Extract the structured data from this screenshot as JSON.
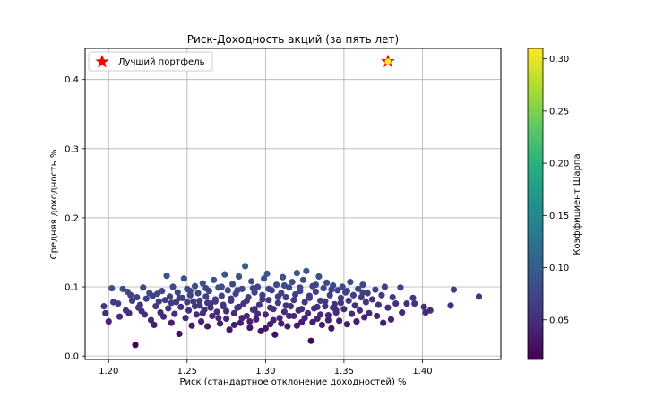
{
  "chart_data": {
    "type": "scatter",
    "title": "Риск-Доходность акций (за пять лет)",
    "xlabel": "Риск (стандартное отклонение доходностей) %",
    "ylabel": "Средняя доходность %",
    "xlim": [
      1.185,
      1.45
    ],
    "ylim": [
      -0.005,
      0.445
    ],
    "xticks": [
      1.2,
      1.25,
      1.3,
      1.35,
      1.4
    ],
    "xtick_labels": [
      "1.20",
      "1.25",
      "1.30",
      "1.35",
      "1.40"
    ],
    "yticks": [
      0.0,
      0.1,
      0.2,
      0.3,
      0.4
    ],
    "ytick_labels": [
      "0.0",
      "0.1",
      "0.2",
      "0.3",
      "0.4"
    ],
    "grid": true,
    "legend": {
      "placement": "top-left",
      "entries": [
        {
          "label": "Лучший портфель",
          "marker": "star",
          "color": "#ff0000"
        }
      ]
    },
    "colorbar": {
      "label": "Коэффициент Шарпа",
      "range": [
        0.012,
        0.31
      ],
      "ticks": [
        0.05,
        0.1,
        0.15,
        0.2,
        0.25,
        0.3
      ],
      "tick_labels": [
        "0.05",
        "0.10",
        "0.15",
        "0.20",
        "0.25",
        "0.30"
      ],
      "colormap": "viridis"
    },
    "best_portfolio": {
      "x": 1.378,
      "y": 0.426,
      "marker_color": "#ff0000"
    },
    "points": [
      [
        1.197,
        0.072
      ],
      [
        1.198,
        0.062
      ],
      [
        1.2,
        0.05
      ],
      [
        1.202,
        0.098
      ],
      [
        1.203,
        0.078
      ],
      [
        1.206,
        0.076
      ],
      [
        1.207,
        0.057
      ],
      [
        1.209,
        0.097
      ],
      [
        1.211,
        0.066
      ],
      [
        1.212,
        0.093
      ],
      [
        1.213,
        0.062
      ],
      [
        1.214,
        0.088
      ],
      [
        1.215,
        0.08
      ],
      [
        1.217,
        0.016
      ],
      [
        1.218,
        0.085
      ],
      [
        1.219,
        0.07
      ],
      [
        1.22,
        0.074
      ],
      [
        1.221,
        0.065
      ],
      [
        1.222,
        0.099
      ],
      [
        1.223,
        0.06
      ],
      [
        1.224,
        0.083
      ],
      [
        1.226,
        0.091
      ],
      [
        1.227,
        0.052
      ],
      [
        1.228,
        0.087
      ],
      [
        1.229,
        0.045
      ],
      [
        1.23,
        0.072
      ],
      [
        1.231,
        0.09
      ],
      [
        1.232,
        0.079
      ],
      [
        1.233,
        0.063
      ],
      [
        1.234,
        0.094
      ],
      [
        1.235,
        0.057
      ],
      [
        1.236,
        0.081
      ],
      [
        1.237,
        0.116
      ],
      [
        1.238,
        0.069
      ],
      [
        1.239,
        0.086
      ],
      [
        1.24,
        0.048
      ],
      [
        1.241,
        0.1
      ],
      [
        1.242,
        0.061
      ],
      [
        1.243,
        0.078
      ],
      [
        1.244,
        0.092
      ],
      [
        1.245,
        0.032
      ],
      [
        1.246,
        0.071
      ],
      [
        1.247,
        0.084
      ],
      [
        1.248,
        0.112
      ],
      [
        1.249,
        0.055
      ],
      [
        1.25,
        0.097
      ],
      [
        1.251,
        0.066
      ],
      [
        1.252,
        0.088
      ],
      [
        1.253,
        0.044
      ],
      [
        1.254,
        0.079
      ],
      [
        1.255,
        0.101
      ],
      [
        1.256,
        0.06
      ],
      [
        1.257,
        0.091
      ],
      [
        1.258,
        0.073
      ],
      [
        1.259,
        0.05
      ],
      [
        1.26,
        0.105
      ],
      [
        1.261,
        0.067
      ],
      [
        1.262,
        0.086
      ],
      [
        1.263,
        0.043
      ],
      [
        1.264,
        0.094
      ],
      [
        1.265,
        0.076
      ],
      [
        1.266,
        0.058
      ],
      [
        1.267,
        0.11
      ],
      [
        1.268,
        0.082
      ],
      [
        1.269,
        0.064
      ],
      [
        1.27,
        0.099
      ],
      [
        1.271,
        0.047
      ],
      [
        1.272,
        0.087
      ],
      [
        1.273,
        0.072
      ],
      [
        1.274,
        0.118
      ],
      [
        1.275,
        0.054
      ],
      [
        1.276,
        0.095
      ],
      [
        1.277,
        0.038
      ],
      [
        1.278,
        0.08
      ],
      [
        1.279,
        0.104
      ],
      [
        1.28,
        0.062
      ],
      [
        1.281,
        0.09
      ],
      [
        1.282,
        0.07
      ],
      [
        1.283,
        0.115
      ],
      [
        1.284,
        0.048
      ],
      [
        1.285,
        0.097
      ],
      [
        1.286,
        0.076
      ],
      [
        1.287,
        0.13
      ],
      [
        1.288,
        0.058
      ],
      [
        1.289,
        0.085
      ],
      [
        1.29,
        0.041
      ],
      [
        1.291,
        0.108
      ],
      [
        1.292,
        0.067
      ],
      [
        1.293,
        0.092
      ],
      [
        1.294,
        0.053
      ],
      [
        1.295,
        0.1
      ],
      [
        1.296,
        0.074
      ],
      [
        1.297,
        0.036
      ],
      [
        1.298,
        0.088
      ],
      [
        1.299,
        0.112
      ],
      [
        1.3,
        0.06
      ],
      [
        1.301,
        0.119
      ],
      [
        1.302,
        0.081
      ],
      [
        1.303,
        0.046
      ],
      [
        1.304,
        0.095
      ],
      [
        1.305,
        0.068
      ],
      [
        1.306,
        0.031
      ],
      [
        1.307,
        0.103
      ],
      [
        1.308,
        0.077
      ],
      [
        1.309,
        0.055
      ],
      [
        1.31,
        0.091
      ],
      [
        1.311,
        0.114
      ],
      [
        1.312,
        0.064
      ],
      [
        1.313,
        0.085
      ],
      [
        1.314,
        0.043
      ],
      [
        1.315,
        0.099
      ],
      [
        1.316,
        0.072
      ],
      [
        1.317,
        0.107
      ],
      [
        1.318,
        0.058
      ],
      [
        1.319,
        0.089
      ],
      [
        1.32,
        0.12
      ],
      [
        1.321,
        0.066
      ],
      [
        1.322,
        0.094
      ],
      [
        1.323,
        0.049
      ],
      [
        1.324,
        0.11
      ],
      [
        1.325,
        0.078
      ],
      [
        1.326,
        0.123
      ],
      [
        1.327,
        0.062
      ],
      [
        1.328,
        0.087
      ],
      [
        1.329,
        0.022
      ],
      [
        1.33,
        0.101
      ],
      [
        1.331,
        0.069
      ],
      [
        1.332,
        0.093
      ],
      [
        1.333,
        0.054
      ],
      [
        1.334,
        0.115
      ],
      [
        1.335,
        0.08
      ],
      [
        1.336,
        0.045
      ],
      [
        1.337,
        0.098
      ],
      [
        1.338,
        0.072
      ],
      [
        1.339,
        0.106
      ],
      [
        1.34,
        0.059
      ],
      [
        1.341,
        0.088
      ],
      [
        1.342,
        0.04
      ],
      [
        1.343,
        0.102
      ],
      [
        1.344,
        0.075
      ],
      [
        1.345,
        0.063
      ],
      [
        1.346,
        0.095
      ],
      [
        1.347,
        0.051
      ],
      [
        1.348,
        0.084
      ],
      [
        1.349,
        0.1
      ],
      [
        1.35,
        0.068
      ],
      [
        1.351,
        0.092
      ],
      [
        1.352,
        0.046
      ],
      [
        1.353,
        0.08
      ],
      [
        1.354,
        0.107
      ],
      [
        1.355,
        0.061
      ],
      [
        1.356,
        0.088
      ],
      [
        1.357,
        0.073
      ],
      [
        1.358,
        0.05
      ],
      [
        1.359,
        0.097
      ],
      [
        1.36,
        0.066
      ],
      [
        1.361,
        0.085
      ],
      [
        1.362,
        0.103
      ],
      [
        1.363,
        0.056
      ],
      [
        1.364,
        0.078
      ],
      [
        1.365,
        0.091
      ],
      [
        1.366,
        0.062
      ],
      [
        1.368,
        0.082
      ],
      [
        1.37,
        0.096
      ],
      [
        1.371,
        0.058
      ],
      [
        1.372,
        0.074
      ],
      [
        1.374,
        0.088
      ],
      [
        1.375,
        0.048
      ],
      [
        1.376,
        0.1
      ],
      [
        1.378,
        0.07
      ],
      [
        1.38,
        0.053
      ],
      [
        1.381,
        0.085
      ],
      [
        1.383,
        0.076
      ],
      [
        1.386,
        0.099
      ],
      [
        1.387,
        0.063
      ],
      [
        1.39,
        0.076
      ],
      [
        1.394,
        0.084
      ],
      [
        1.395,
        0.076
      ],
      [
        1.401,
        0.071
      ],
      [
        1.402,
        0.063
      ],
      [
        1.405,
        0.066
      ],
      [
        1.418,
        0.073
      ],
      [
        1.42,
        0.096
      ],
      [
        1.436,
        0.086
      ],
      [
        1.3,
        0.04
      ],
      [
        1.305,
        0.052
      ],
      [
        1.31,
        0.047
      ],
      [
        1.315,
        0.058
      ],
      [
        1.32,
        0.044
      ],
      [
        1.325,
        0.055
      ],
      [
        1.33,
        0.049
      ],
      [
        1.335,
        0.06
      ],
      [
        1.34,
        0.052
      ],
      [
        1.345,
        0.066
      ],
      [
        1.28,
        0.045
      ],
      [
        1.285,
        0.055
      ],
      [
        1.29,
        0.05
      ],
      [
        1.295,
        0.061
      ],
      [
        1.27,
        0.055
      ],
      [
        1.275,
        0.065
      ],
      [
        1.26,
        0.062
      ],
      [
        1.265,
        0.07
      ],
      [
        1.255,
        0.072
      ],
      [
        1.25,
        0.078
      ],
      [
        1.245,
        0.084
      ],
      [
        1.24,
        0.077
      ],
      [
        1.282,
        0.095
      ],
      [
        1.292,
        0.098
      ],
      [
        1.302,
        0.097
      ],
      [
        1.312,
        0.102
      ],
      [
        1.322,
        0.099
      ],
      [
        1.332,
        0.103
      ],
      [
        1.342,
        0.096
      ],
      [
        1.352,
        0.094
      ],
      [
        1.362,
        0.092
      ],
      [
        1.272,
        0.1
      ],
      [
        1.262,
        0.098
      ],
      [
        1.252,
        0.094
      ],
      [
        1.298,
        0.082
      ],
      [
        1.308,
        0.086
      ],
      [
        1.318,
        0.081
      ],
      [
        1.328,
        0.084
      ],
      [
        1.338,
        0.079
      ],
      [
        1.348,
        0.077
      ],
      [
        1.288,
        0.08
      ],
      [
        1.278,
        0.083
      ],
      [
        1.268,
        0.079
      ],
      [
        1.258,
        0.08
      ],
      [
        1.303,
        0.07
      ],
      [
        1.313,
        0.073
      ],
      [
        1.323,
        0.068
      ],
      [
        1.333,
        0.071
      ],
      [
        1.343,
        0.07
      ],
      [
        1.293,
        0.068
      ],
      [
        1.283,
        0.071
      ],
      [
        1.273,
        0.074
      ],
      [
        1.263,
        0.077
      ]
    ]
  }
}
